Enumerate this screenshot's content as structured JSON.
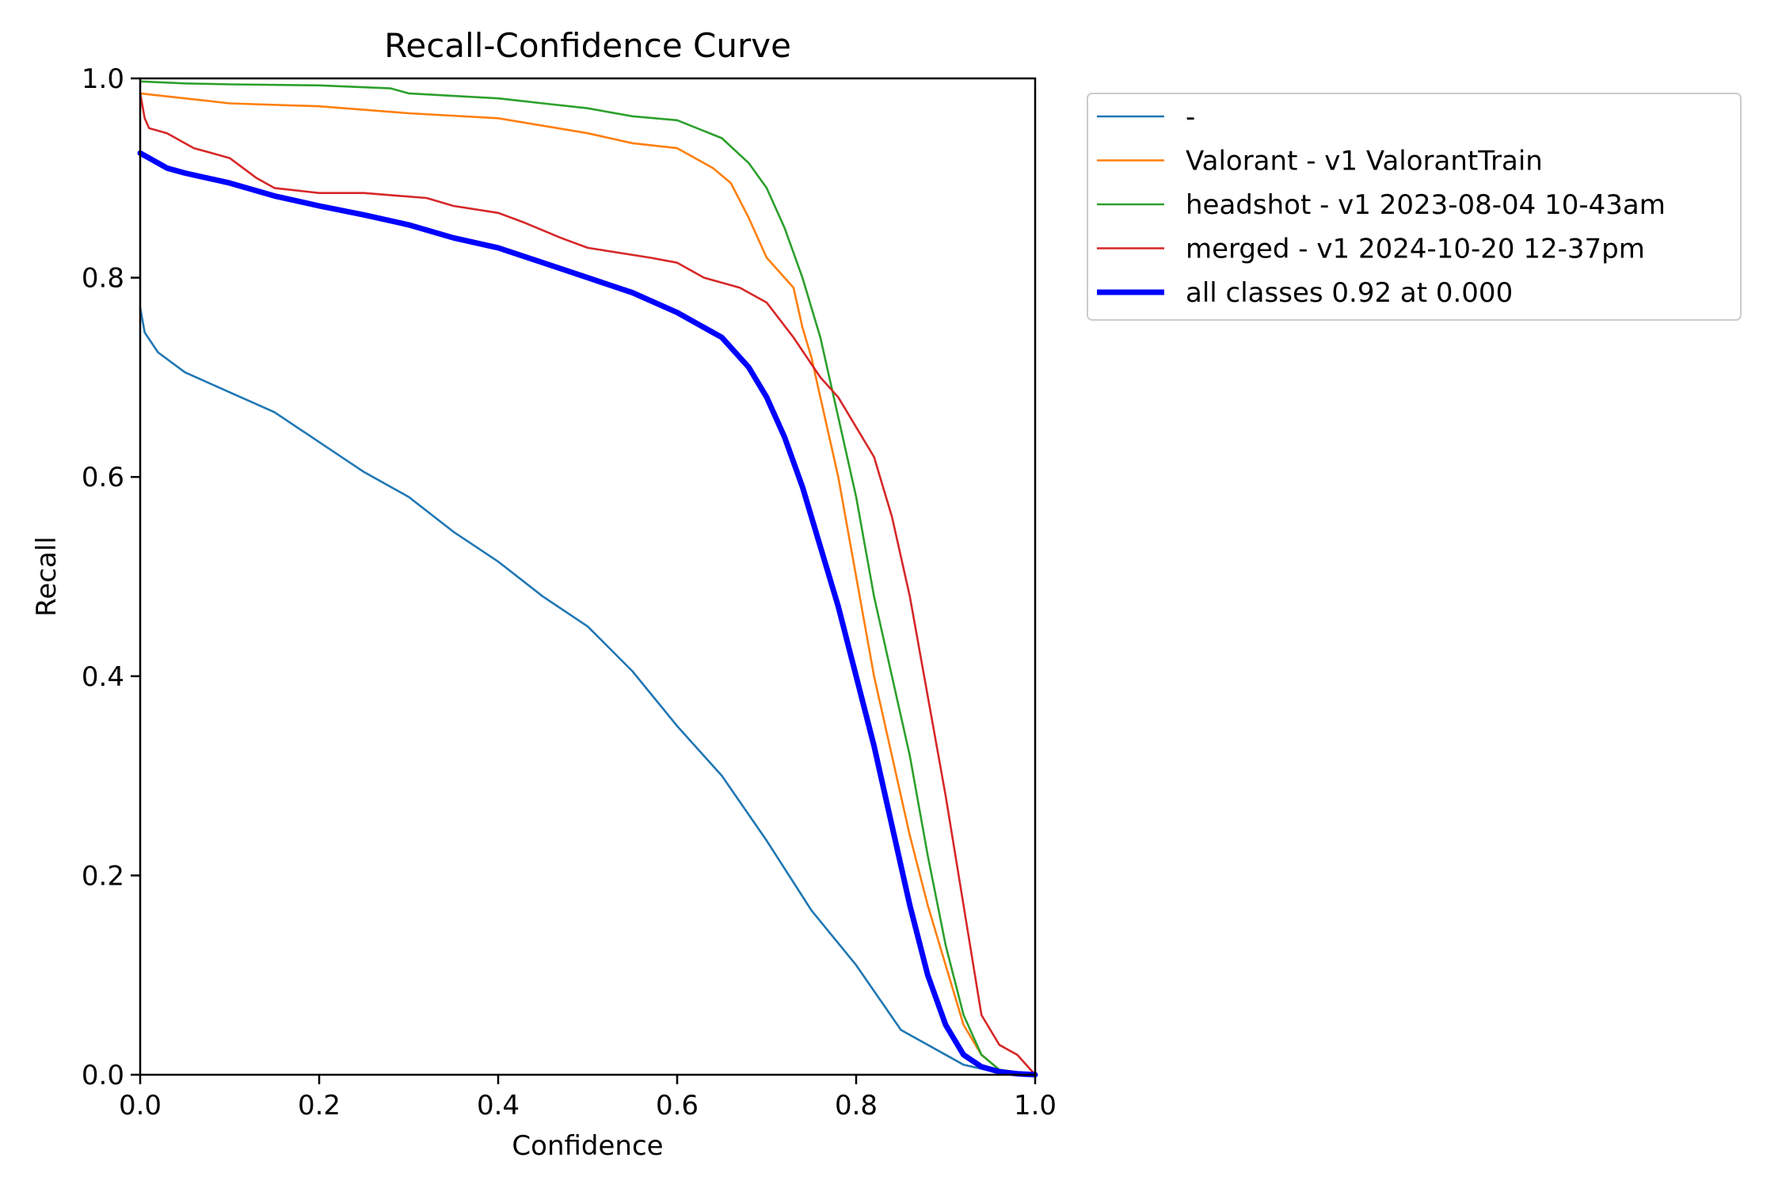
{
  "chart_data": {
    "type": "line",
    "title": "Recall-Confidence Curve",
    "xlabel": "Confidence",
    "ylabel": "Recall",
    "xlim": [
      0,
      1
    ],
    "ylim": [
      0,
      1
    ],
    "xticks": [
      "0.0",
      "0.2",
      "0.4",
      "0.6",
      "0.8",
      "1.0"
    ],
    "yticks": [
      "0.0",
      "0.2",
      "0.4",
      "0.6",
      "0.8",
      "1.0"
    ],
    "grid": false,
    "legend_position": "outside upper right",
    "series": [
      {
        "name": "-",
        "color": "#1f77b4",
        "width": "thin",
        "x": [
          0.0,
          0.005,
          0.02,
          0.05,
          0.1,
          0.15,
          0.2,
          0.25,
          0.3,
          0.35,
          0.4,
          0.45,
          0.5,
          0.55,
          0.6,
          0.65,
          0.7,
          0.75,
          0.8,
          0.85,
          0.88,
          0.9,
          0.92,
          0.95,
          0.97,
          1.0
        ],
        "y": [
          0.77,
          0.745,
          0.725,
          0.705,
          0.685,
          0.665,
          0.635,
          0.605,
          0.58,
          0.545,
          0.515,
          0.48,
          0.45,
          0.405,
          0.35,
          0.3,
          0.235,
          0.165,
          0.11,
          0.045,
          0.03,
          0.02,
          0.01,
          0.004,
          0.002,
          0.0
        ]
      },
      {
        "name": "Valorant - v1 ValorantTrain",
        "color": "#ff7f0e",
        "width": "thin",
        "x": [
          0.0,
          0.05,
          0.1,
          0.2,
          0.3,
          0.4,
          0.5,
          0.55,
          0.6,
          0.64,
          0.66,
          0.68,
          0.7,
          0.72,
          0.73,
          0.74,
          0.75,
          0.76,
          0.78,
          0.8,
          0.82,
          0.84,
          0.86,
          0.88,
          0.9,
          0.92,
          0.94,
          0.96,
          1.0
        ],
        "y": [
          0.985,
          0.98,
          0.975,
          0.972,
          0.965,
          0.96,
          0.945,
          0.935,
          0.93,
          0.91,
          0.895,
          0.86,
          0.82,
          0.8,
          0.79,
          0.75,
          0.72,
          0.68,
          0.6,
          0.5,
          0.4,
          0.32,
          0.24,
          0.17,
          0.11,
          0.05,
          0.02,
          0.005,
          0.0
        ]
      },
      {
        "name": "headshot - v1 2023-08-04 10-43am",
        "color": "#2ca02c",
        "width": "thin",
        "x": [
          0.0,
          0.05,
          0.1,
          0.2,
          0.28,
          0.3,
          0.4,
          0.45,
          0.5,
          0.55,
          0.6,
          0.65,
          0.68,
          0.7,
          0.72,
          0.74,
          0.76,
          0.78,
          0.8,
          0.82,
          0.84,
          0.86,
          0.88,
          0.9,
          0.92,
          0.94,
          0.96,
          1.0
        ],
        "y": [
          0.997,
          0.995,
          0.994,
          0.993,
          0.99,
          0.985,
          0.98,
          0.975,
          0.97,
          0.962,
          0.958,
          0.94,
          0.915,
          0.89,
          0.85,
          0.8,
          0.74,
          0.66,
          0.58,
          0.48,
          0.4,
          0.32,
          0.22,
          0.13,
          0.06,
          0.02,
          0.005,
          0.0
        ]
      },
      {
        "name": "merged - v1 2024-10-20 12-37pm",
        "color": "#d62728",
        "width": "thin",
        "x": [
          0.0,
          0.005,
          0.01,
          0.03,
          0.06,
          0.08,
          0.1,
          0.13,
          0.15,
          0.2,
          0.25,
          0.32,
          0.35,
          0.4,
          0.43,
          0.47,
          0.5,
          0.57,
          0.6,
          0.63,
          0.67,
          0.7,
          0.73,
          0.76,
          0.78,
          0.8,
          0.82,
          0.84,
          0.86,
          0.88,
          0.9,
          0.92,
          0.94,
          0.96,
          0.98,
          1.0
        ],
        "y": [
          0.985,
          0.96,
          0.95,
          0.945,
          0.93,
          0.925,
          0.92,
          0.9,
          0.89,
          0.885,
          0.885,
          0.88,
          0.872,
          0.865,
          0.855,
          0.84,
          0.83,
          0.82,
          0.815,
          0.8,
          0.79,
          0.775,
          0.74,
          0.7,
          0.68,
          0.65,
          0.62,
          0.56,
          0.48,
          0.38,
          0.28,
          0.17,
          0.06,
          0.03,
          0.02,
          0.0
        ]
      },
      {
        "name": "all classes 0.92 at 0.000",
        "color": "#0000ff",
        "width": "thick",
        "x": [
          0.0,
          0.03,
          0.05,
          0.1,
          0.15,
          0.2,
          0.25,
          0.3,
          0.35,
          0.4,
          0.45,
          0.5,
          0.55,
          0.6,
          0.65,
          0.68,
          0.7,
          0.72,
          0.74,
          0.76,
          0.78,
          0.8,
          0.82,
          0.84,
          0.86,
          0.88,
          0.9,
          0.92,
          0.94,
          0.96,
          0.98,
          1.0
        ],
        "y": [
          0.925,
          0.91,
          0.905,
          0.895,
          0.882,
          0.872,
          0.863,
          0.853,
          0.84,
          0.83,
          0.815,
          0.8,
          0.785,
          0.765,
          0.74,
          0.71,
          0.68,
          0.64,
          0.59,
          0.53,
          0.47,
          0.4,
          0.33,
          0.25,
          0.17,
          0.1,
          0.05,
          0.02,
          0.008,
          0.003,
          0.001,
          0.0
        ]
      }
    ]
  }
}
